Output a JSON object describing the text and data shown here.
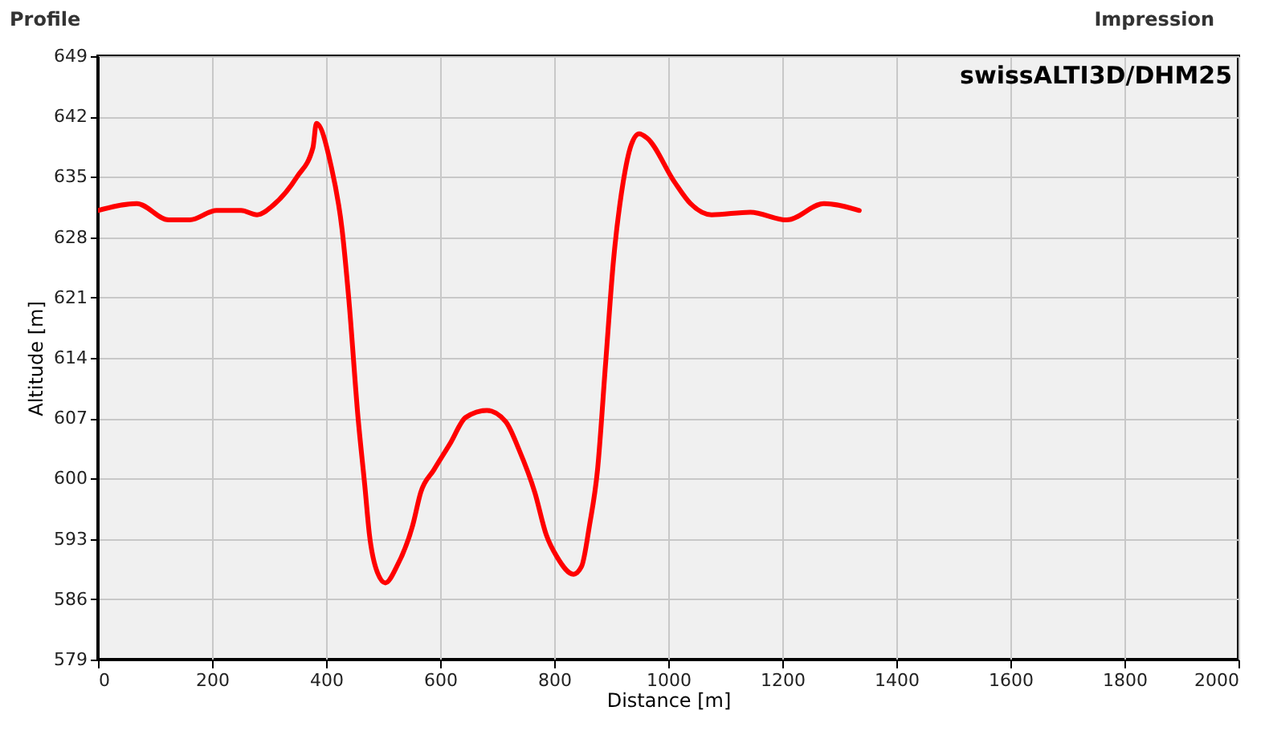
{
  "chart_data": {
    "type": "line",
    "title": "Profile",
    "xlabel": "Distance [m]",
    "ylabel": "Altitude [m]",
    "annotations": [
      "swissALTI3D/DHM25",
      "Impression"
    ],
    "xlim": [
      0,
      2000
    ],
    "xticks": [
      0,
      200,
      400,
      600,
      800,
      1000,
      1200,
      1400,
      1600,
      1800,
      2000
    ],
    "ylim": [
      579,
      649
    ],
    "yticks": [
      579,
      586,
      593,
      600,
      607,
      614,
      621,
      628,
      635,
      642,
      649
    ],
    "grid": true,
    "marker": "none",
    "line_style": "solid",
    "series": [
      {
        "color": "#ff0000",
        "x": [
          0,
          68,
          124,
          161,
          208,
          251,
          279,
          307,
          349,
          377,
          383,
          408,
          428,
          440,
          456,
          468,
          476,
          490,
          504,
          524,
          552,
          566,
          589,
          617,
          645,
          682,
          715,
          738,
          766,
          786,
          805,
          834,
          848,
          862,
          876,
          890,
          904,
          921,
          935,
          949,
          963,
          1011,
          1039,
          1076,
          1144,
          1208,
          1273,
          1335
        ],
        "values": [
          631.1,
          631.9,
          630.0,
          630.0,
          631.1,
          631.1,
          630.6,
          631.7,
          635.0,
          638.4,
          641.2,
          636.5,
          628.9,
          620.7,
          607.1,
          599.1,
          593.5,
          589.1,
          587.9,
          589.8,
          594.6,
          598.4,
          601.0,
          604.0,
          607.1,
          607.9,
          606.6,
          603.4,
          598.4,
          593.5,
          590.9,
          588.9,
          589.8,
          594.6,
          601.0,
          613.2,
          625.3,
          634.4,
          638.7,
          640.0,
          639.5,
          634.4,
          631.9,
          630.6,
          630.9,
          630.0,
          631.9,
          631.1
        ]
      }
    ]
  }
}
